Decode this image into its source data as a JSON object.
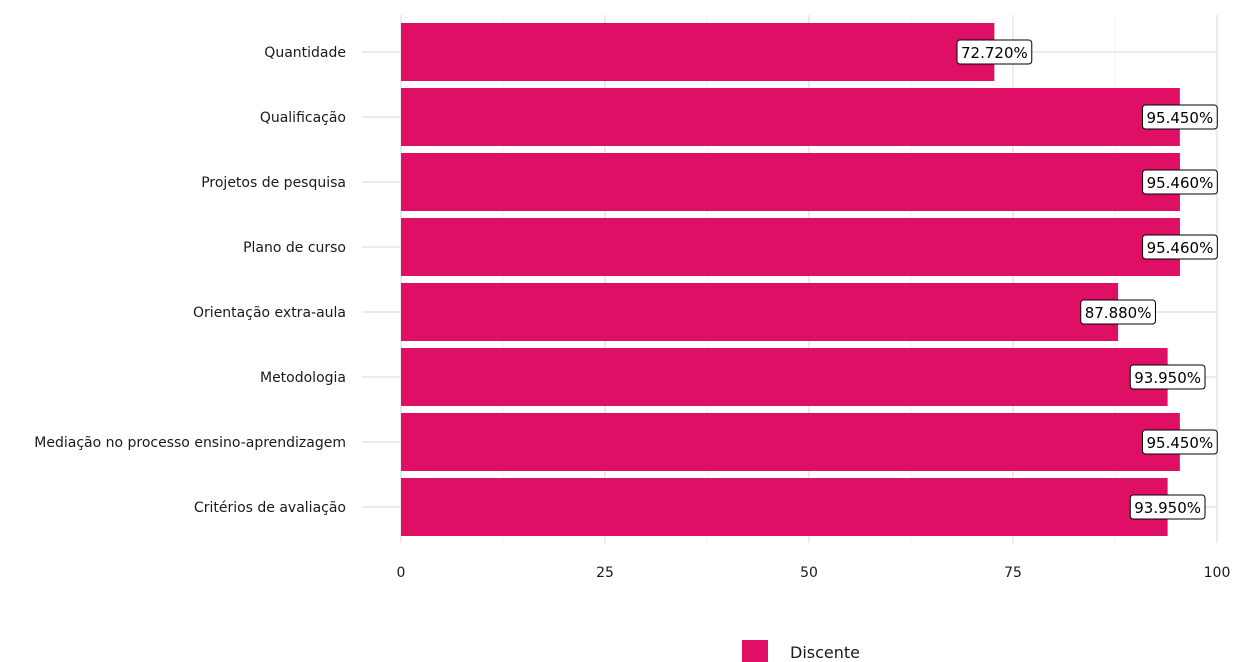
{
  "chart_data": {
    "type": "bar",
    "orientation": "horizontal",
    "categories": [
      "Quantidade",
      "Qualificação",
      "Projetos de pesquisa",
      "Plano de curso",
      "Orientação extra-aula",
      "Metodologia",
      "Mediação no processo ensino-aprendizagem",
      "Critérios de avaliação"
    ],
    "series": [
      {
        "name": "Discente",
        "color": "#DE0F64",
        "values": [
          72.72,
          95.45,
          95.46,
          95.46,
          87.88,
          93.95,
          95.45,
          93.95
        ],
        "labels": [
          "72.720%",
          "95.450%",
          "95.460%",
          "95.460%",
          "87.880%",
          "93.950%",
          "95.450%",
          "93.950%"
        ]
      }
    ],
    "xlim": [
      0,
      100
    ],
    "xticks": [
      0,
      25,
      50,
      75,
      100
    ],
    "xtick_labels": [
      "0",
      "25",
      "50",
      "75",
      "100"
    ],
    "title": "",
    "xlabel": "",
    "ylabel": "",
    "grid": true,
    "legend_position": "bottom"
  }
}
